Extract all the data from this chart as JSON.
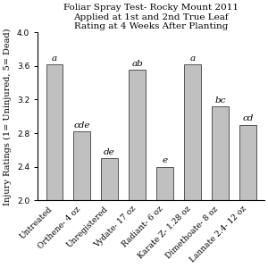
{
  "title": "Foliar Spray Test- Rocky Mount 2011\nApplied at 1st and 2nd True Leaf\nRating at 4 Weeks After Planting",
  "ylabel": "Injury Ratings (1= Uninjured, 5= Dead)",
  "categories": [
    "Untreated",
    "Orthene- 4 oz",
    "Unregistered",
    "Vydate- 17 oz",
    "Radiant- 6 oz",
    "Karate Z- 1.28 oz",
    "Dimethoate- 8 oz",
    "Lannate 2.4- 12 oz"
  ],
  "values": [
    3.62,
    2.82,
    2.5,
    3.55,
    2.4,
    3.62,
    3.12,
    2.9
  ],
  "letters": [
    "a",
    "cde",
    "de",
    "ab",
    "e",
    "a",
    "bc",
    "cd"
  ],
  "bar_color": "#c0c0c0",
  "bar_edge_color": "#555555",
  "ylim": [
    2.0,
    4.0
  ],
  "yticks": [
    2.0,
    2.4,
    2.8,
    3.2,
    3.6,
    4.0
  ],
  "title_fontsize": 7.5,
  "ylabel_fontsize": 7,
  "tick_fontsize": 6.5,
  "letter_fontsize": 7.5,
  "background_color": "#ffffff"
}
